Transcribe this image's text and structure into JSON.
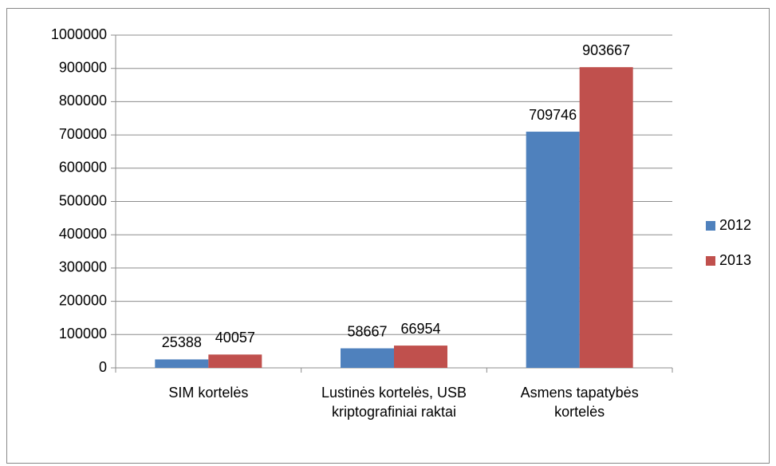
{
  "chart_data": {
    "type": "bar",
    "categories": [
      "SIM kortelės",
      "Lustinės kortelės, USB kriptografiniai raktai",
      "Asmens tapatybės kortelės"
    ],
    "series": [
      {
        "name": "2012",
        "color": "#4f81bd",
        "values": [
          25388,
          58667,
          709746
        ]
      },
      {
        "name": "2013",
        "color": "#c0504d",
        "values": [
          40057,
          66954,
          903667
        ]
      }
    ],
    "ylim": [
      0,
      1000000
    ],
    "yticks": [
      0,
      100000,
      200000,
      300000,
      400000,
      500000,
      600000,
      700000,
      800000,
      900000,
      1000000
    ],
    "grid": true,
    "legend": "right"
  }
}
